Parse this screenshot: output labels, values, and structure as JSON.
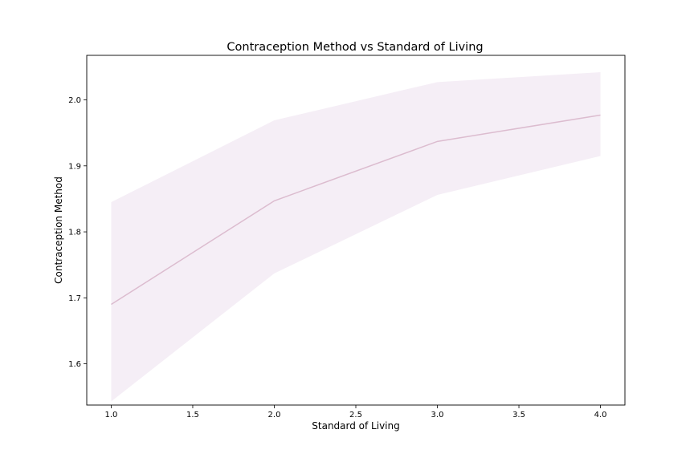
{
  "chart_data": {
    "type": "line",
    "title": "Contraception Method vs Standard of Living",
    "xlabel": "Standard of Living",
    "ylabel": "Contraception Method",
    "xlim": [
      0.85,
      4.15
    ],
    "ylim": [
      1.5375,
      2.0675
    ],
    "xticks": [
      1.0,
      1.5,
      2.0,
      2.5,
      3.0,
      3.5,
      4.0
    ],
    "xtick_labels": [
      "1.0",
      "1.5",
      "2.0",
      "2.5",
      "3.0",
      "3.5",
      "4.0"
    ],
    "yticks": [
      1.6,
      1.7,
      1.8,
      1.9,
      2.0
    ],
    "ytick_labels": [
      "1.6",
      "1.7",
      "1.8",
      "1.9",
      "2.0"
    ],
    "grid": false,
    "series": [
      {
        "x": [
          1,
          2,
          3,
          4
        ],
        "y": [
          1.69,
          1.847,
          1.937,
          1.977
        ],
        "ci_lower": [
          1.543,
          1.737,
          1.856,
          1.915
        ],
        "ci_upper": [
          1.845,
          1.969,
          2.027,
          2.042
        ],
        "color": "#dcbccf",
        "band_color": "#f5eef6"
      }
    ]
  }
}
